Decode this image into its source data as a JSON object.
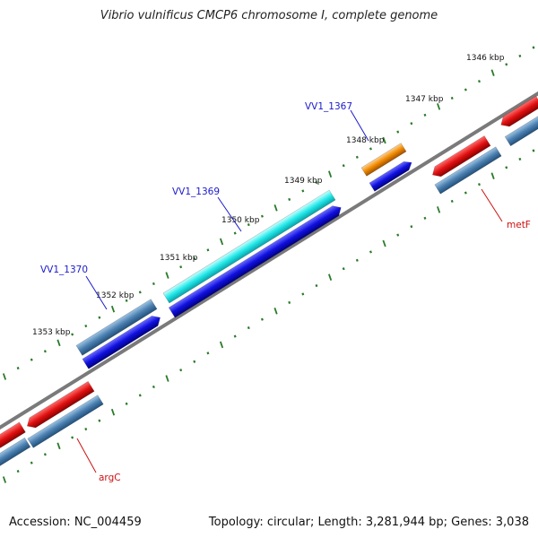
{
  "title": "Vibrio vulnificus CMCP6 chromosome I, complete genome",
  "accession": "Accession: NC_004459",
  "summary": "Topology: circular; Length: 3,281,944 bp; Genes: 3,038",
  "ticks": [
    "1346 kbp",
    "1347 kbp",
    "1348 kbp",
    "1349 kbp",
    "1350 kbp",
    "1351 kbp",
    "1352 kbp",
    "1353 kbp"
  ],
  "gene_labels": {
    "vv1_1367": "VV1_1367",
    "vv1_1369": "VV1_1369",
    "vv1_1370": "VV1_1370",
    "metF": "metF",
    "argC": "argC"
  },
  "colors": {
    "backbone": "#8a8a8a",
    "tick_mark": "#2a7a2a",
    "red_gene": "#e01010",
    "steelblue_gene": "#4a7fb0",
    "blue_cds": "#1010e0",
    "cyan_gene": "#22e8e8",
    "orange_gene": "#f08a00",
    "label_blue": "#1a1acc",
    "label_red": "#cc1111"
  }
}
